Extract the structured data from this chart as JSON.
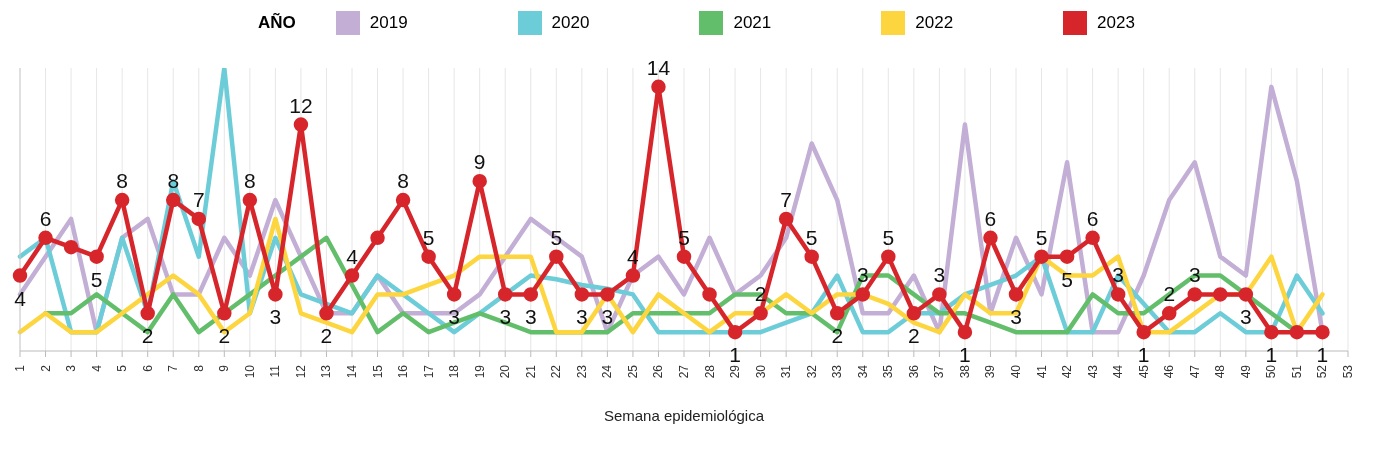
{
  "chart_data": {
    "type": "line",
    "xlabel": "Semana epidemiológica",
    "legend_title": "AÑO",
    "legend": "top",
    "grid": "x",
    "tick_labels": "x",
    "line_style": "solid",
    "categories": [
      "1",
      "2",
      "3",
      "4",
      "5",
      "6",
      "7",
      "8",
      "9",
      "10",
      "11",
      "12",
      "13",
      "14",
      "15",
      "16",
      "17",
      "18",
      "19",
      "20",
      "21",
      "22",
      "23",
      "24",
      "25",
      "26",
      "27",
      "28",
      "29",
      "30",
      "31",
      "32",
      "33",
      "34",
      "35",
      "36",
      "37",
      "38",
      "39",
      "40",
      "41",
      "42",
      "43",
      "44",
      "45",
      "46",
      "47",
      "48",
      "49",
      "50",
      "51",
      "52",
      "53"
    ],
    "ylim": [
      0,
      15
    ],
    "series": [
      {
        "name": "2019",
        "color": "#c3aed6",
        "marker": "none",
        "values": [
          3,
          5,
          7,
          1,
          6,
          7,
          3,
          3,
          6,
          4,
          8,
          5,
          2,
          2,
          4,
          2,
          2,
          2,
          3,
          5,
          7,
          6,
          5,
          1,
          4,
          5,
          3,
          6,
          3,
          4,
          6,
          11,
          8,
          2,
          2,
          4,
          1,
          12,
          2,
          6,
          3,
          10,
          1,
          1,
          4,
          8,
          10,
          5,
          4,
          14,
          9,
          1,
          null
        ]
      },
      {
        "name": "2020",
        "color": "#6ccdd9",
        "marker": "none",
        "values": [
          5,
          6,
          1,
          1,
          6,
          2,
          9,
          5,
          15,
          2,
          6,
          3,
          2.5,
          2,
          4,
          3,
          2,
          1,
          2,
          3,
          4,
          3.8,
          3.5,
          3.3,
          3,
          1,
          1,
          1,
          1,
          1,
          1.5,
          2,
          4,
          1,
          1,
          2,
          2,
          3,
          3.5,
          4,
          5,
          1,
          1,
          4,
          2.5,
          1,
          1,
          2,
          1,
          1,
          4,
          2,
          null
        ]
      },
      {
        "name": "2021",
        "color": "#63be6b",
        "marker": "none",
        "values": [
          null,
          2,
          2,
          3,
          2,
          1,
          3,
          1,
          2,
          3,
          4,
          5,
          6,
          3.5,
          1,
          2,
          1,
          1.5,
          2,
          1.5,
          1,
          1,
          1,
          1,
          2,
          2,
          2,
          2,
          3,
          3,
          2,
          2,
          1,
          4,
          4,
          3,
          2,
          2,
          1.5,
          1,
          1,
          1,
          3,
          2,
          2,
          3,
          4,
          4,
          3,
          2,
          1,
          null,
          null
        ]
      },
      {
        "name": "2022",
        "color": "#fcd53f",
        "marker": "none",
        "values": [
          1,
          2,
          1,
          1,
          2,
          3,
          4,
          3,
          1,
          2,
          7,
          2,
          1.5,
          1,
          3,
          3,
          3.5,
          4,
          5,
          5,
          5,
          1,
          1,
          3,
          1,
          3,
          2,
          1,
          2,
          2,
          3,
          2,
          3,
          3,
          2.5,
          1.5,
          1,
          3,
          2,
          2,
          5,
          4,
          4,
          5,
          1,
          1,
          2,
          3,
          3,
          5,
          1,
          3,
          null
        ]
      },
      {
        "name": "2023",
        "color": "#d7262b",
        "marker": "circle",
        "values": [
          4,
          6,
          5.5,
          5,
          8,
          2,
          8,
          7,
          2,
          8,
          3,
          12,
          2,
          4,
          6,
          8,
          5,
          3,
          9,
          3,
          3,
          5,
          3,
          3,
          4,
          14,
          5,
          3,
          1,
          2,
          7,
          5,
          2,
          3,
          5,
          2,
          3,
          1,
          6,
          3,
          5,
          5,
          6,
          3,
          1,
          2,
          3,
          3,
          3,
          1,
          1,
          1,
          null
        ],
        "value_labels": [
          "4",
          "6",
          null,
          "5",
          "8",
          "2",
          "8",
          "7",
          "2",
          "8",
          "3",
          "12",
          "2",
          "4",
          null,
          "8",
          "5",
          "3",
          "9",
          "3",
          "3",
          "5",
          "3",
          "3",
          "4",
          "14",
          "5",
          null,
          "1",
          "2",
          "7",
          "5",
          "2",
          "3",
          "5",
          "2",
          "3",
          "1",
          "6",
          "3",
          "5",
          "5",
          "6",
          "3",
          "1",
          "2",
          "3",
          null,
          "3",
          "1",
          null,
          "1",
          null
        ]
      }
    ]
  }
}
